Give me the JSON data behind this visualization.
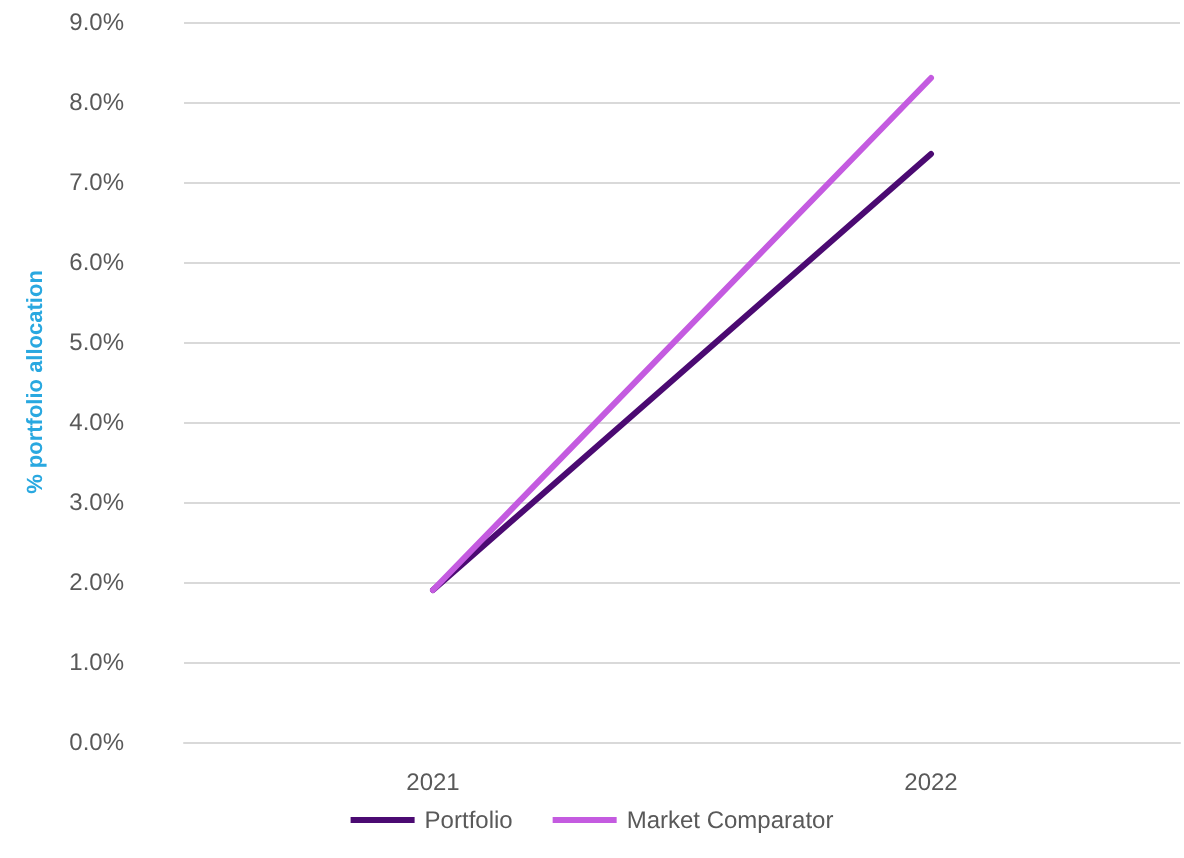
{
  "chart_data": {
    "type": "line",
    "ylabel": "% portfolio allocation",
    "categories": [
      "2021",
      "2022"
    ],
    "series": [
      {
        "name": "Portfolio",
        "color": "#4b0a72",
        "values": [
          1.9,
          7.35
        ]
      },
      {
        "name": "Market Comparator",
        "color": "#c45be0",
        "values": [
          1.9,
          8.3
        ]
      }
    ],
    "ylim": [
      0,
      9
    ],
    "yticks": [
      {
        "value": 0,
        "label": "0.0%"
      },
      {
        "value": 1,
        "label": "1.0%"
      },
      {
        "value": 2,
        "label": "2.0%"
      },
      {
        "value": 3,
        "label": "3.0%"
      },
      {
        "value": 4,
        "label": "4.0%"
      },
      {
        "value": 5,
        "label": "5.0%"
      },
      {
        "value": 6,
        "label": "6.0%"
      },
      {
        "value": 7,
        "label": "7.0%"
      },
      {
        "value": 8,
        "label": "8.0%"
      },
      {
        "value": 9,
        "label": "9.0%"
      }
    ],
    "grid": "y",
    "legend": "bottom",
    "marker": "none",
    "line_style": "solid"
  }
}
